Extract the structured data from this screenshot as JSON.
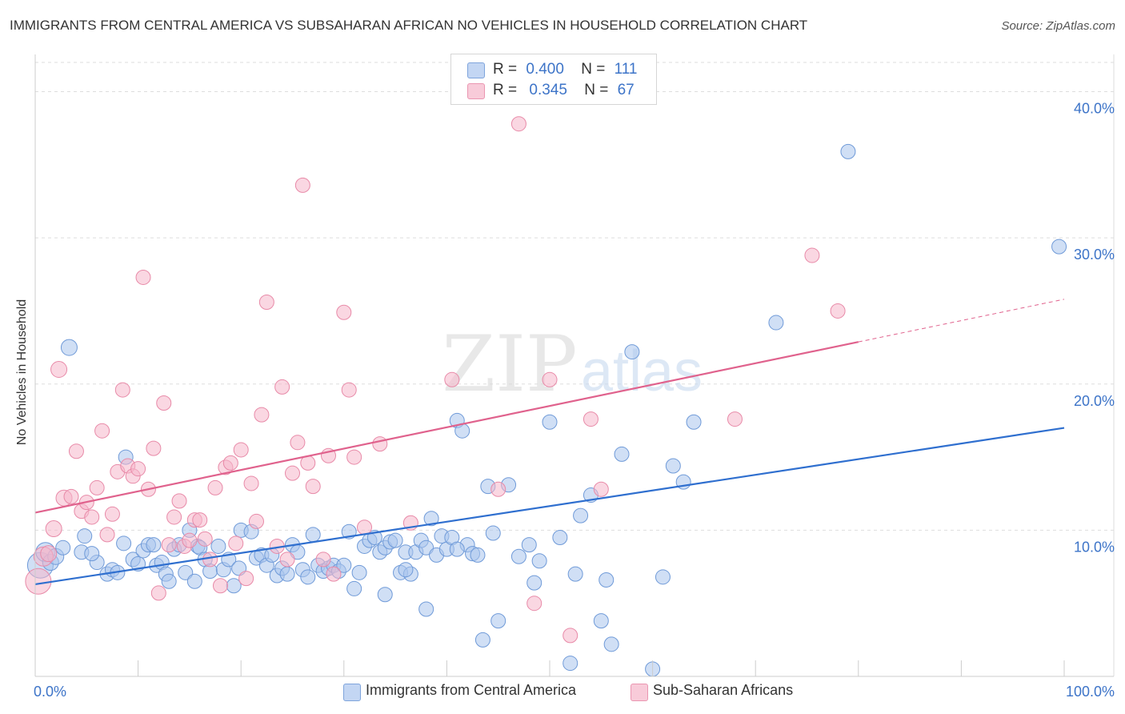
{
  "title": "IMMIGRANTS FROM CENTRAL AMERICA VS SUBSAHARAN AFRICAN NO VEHICLES IN HOUSEHOLD CORRELATION CHART",
  "source": "Source: ZipAtlas.com",
  "watermark": {
    "zip": "ZIP",
    "atlas": "atlas"
  },
  "legend_top": [
    {
      "r_label": "R =",
      "r_value": "0.400",
      "n_label": "N =",
      "n_value": "111"
    },
    {
      "r_label": "R =",
      "r_value": "0.345",
      "n_label": "N =",
      "n_value": "67"
    }
  ],
  "colors": {
    "blue_fill": "#a9c4ec",
    "blue_stroke": "#6f9ad8",
    "blue_line": "#2f6fcf",
    "pink_fill": "#f5b7cb",
    "pink_stroke": "#e88aa8",
    "pink_line": "#e0628d",
    "grid": "#dddddd",
    "tick_label": "#3d74c8"
  },
  "chart_data": {
    "type": "scatter",
    "xlabel": "",
    "ylabel": "No Vehicles in Household",
    "xlim": [
      0,
      100
    ],
    "ylim": [
      0,
      42
    ],
    "x_tick_labels": [
      {
        "value": 0,
        "label": "0.0%"
      },
      {
        "value": 100,
        "label": "100.0%"
      }
    ],
    "y_tick_labels": [
      {
        "value": 10,
        "label": "10.0%"
      },
      {
        "value": 20,
        "label": "20.0%"
      },
      {
        "value": 30,
        "label": "30.0%"
      },
      {
        "value": 40,
        "label": "40.0%"
      }
    ],
    "x_minor_ticks": [
      0,
      10,
      20,
      30,
      40,
      50,
      60,
      70,
      80,
      90,
      100
    ],
    "grid": true,
    "legend_position": "bottom",
    "series": [
      {
        "name": "Immigrants from Central America",
        "color_key": "blue",
        "r": 0.4,
        "n": 111,
        "trend": {
          "x": [
            0,
            100
          ],
          "y": [
            6.3,
            17.0
          ],
          "dashed_from": null
        },
        "points": [
          [
            0.5,
            7.6,
            16
          ],
          [
            1.0,
            8.5,
            12
          ],
          [
            1.5,
            7.8,
            10
          ],
          [
            2.0,
            8.2,
            10
          ],
          [
            3.3,
            22.5,
            10
          ],
          [
            2.7,
            8.8,
            9
          ],
          [
            4.8,
            9.6,
            9
          ],
          [
            4.5,
            8.5,
            9
          ],
          [
            6.0,
            7.8,
            9
          ],
          [
            5.5,
            8.4,
            9
          ],
          [
            7.0,
            7.0,
            9
          ],
          [
            7.5,
            7.3,
            9
          ],
          [
            8.0,
            7.1,
            9
          ],
          [
            8.6,
            9.1,
            9
          ],
          [
            8.8,
            15.0,
            9
          ],
          [
            9.5,
            8.0,
            9
          ],
          [
            10.0,
            7.7,
            9
          ],
          [
            10.5,
            8.6,
            9
          ],
          [
            11.0,
            9.0,
            9
          ],
          [
            11.5,
            9.0,
            9
          ],
          [
            11.8,
            7.6,
            9
          ],
          [
            12.3,
            7.8,
            9
          ],
          [
            12.7,
            7.0,
            9
          ],
          [
            13.0,
            6.5,
            9
          ],
          [
            13.5,
            8.7,
            9
          ],
          [
            14.0,
            9.0,
            9
          ],
          [
            14.6,
            7.1,
            9
          ],
          [
            15.0,
            10.0,
            9
          ],
          [
            15.5,
            6.5,
            9
          ],
          [
            15.8,
            8.9,
            9
          ],
          [
            16.0,
            8.8,
            9
          ],
          [
            16.5,
            8.0,
            9
          ],
          [
            17.0,
            7.2,
            9
          ],
          [
            17.8,
            8.9,
            9
          ],
          [
            18.3,
            7.3,
            9
          ],
          [
            18.8,
            8.0,
            9
          ],
          [
            19.3,
            6.2,
            9
          ],
          [
            19.8,
            7.4,
            9
          ],
          [
            20.0,
            10.0,
            9
          ],
          [
            21.0,
            9.9,
            9
          ],
          [
            21.5,
            8.1,
            9
          ],
          [
            22.0,
            8.3,
            9
          ],
          [
            22.5,
            7.6,
            9
          ],
          [
            23.0,
            8.3,
            9
          ],
          [
            23.5,
            6.9,
            9
          ],
          [
            24.0,
            7.4,
            9
          ],
          [
            24.5,
            7.0,
            9
          ],
          [
            25.0,
            9.0,
            9
          ],
          [
            25.5,
            8.5,
            9
          ],
          [
            26.0,
            7.3,
            9
          ],
          [
            26.5,
            6.8,
            9
          ],
          [
            27.0,
            9.7,
            9
          ],
          [
            27.5,
            7.6,
            9
          ],
          [
            28.0,
            7.2,
            9
          ],
          [
            28.5,
            7.4,
            9
          ],
          [
            29.0,
            7.6,
            9
          ],
          [
            29.5,
            7.2,
            9
          ],
          [
            30.0,
            7.6,
            9
          ],
          [
            30.5,
            9.9,
            9
          ],
          [
            31.0,
            6.0,
            9
          ],
          [
            31.5,
            7.1,
            9
          ],
          [
            32.0,
            8.9,
            9
          ],
          [
            32.5,
            9.3,
            9
          ],
          [
            33.0,
            9.5,
            9
          ],
          [
            33.5,
            8.5,
            9
          ],
          [
            34.0,
            8.8,
            9
          ],
          [
            34.5,
            9.2,
            9
          ],
          [
            35.0,
            9.3,
            9
          ],
          [
            35.5,
            7.1,
            9
          ],
          [
            36.0,
            8.5,
            9
          ],
          [
            36.5,
            7.0,
            9
          ],
          [
            37.0,
            8.5,
            9
          ],
          [
            37.5,
            9.3,
            9
          ],
          [
            38.0,
            8.8,
            9
          ],
          [
            38.5,
            10.8,
            9
          ],
          [
            39.0,
            8.3,
            9
          ],
          [
            39.5,
            9.6,
            9
          ],
          [
            40.0,
            8.7,
            9
          ],
          [
            40.5,
            9.5,
            9
          ],
          [
            41.0,
            17.5,
            9
          ],
          [
            41.5,
            16.8,
            9
          ],
          [
            42.0,
            9.0,
            9
          ],
          [
            42.5,
            8.4,
            9
          ],
          [
            43.0,
            8.3,
            9
          ],
          [
            43.5,
            2.5,
            9
          ],
          [
            44.0,
            13.0,
            9
          ],
          [
            44.5,
            9.8,
            9
          ],
          [
            45.0,
            3.8,
            9
          ],
          [
            46.0,
            13.1,
            9
          ],
          [
            47.0,
            8.2,
            9
          ],
          [
            48.0,
            9.0,
            9
          ],
          [
            48.5,
            6.4,
            9
          ],
          [
            49.0,
            7.9,
            9
          ],
          [
            50.0,
            17.4,
            9
          ],
          [
            51.0,
            9.5,
            9
          ],
          [
            52.0,
            0.9,
            9
          ],
          [
            52.5,
            7.0,
            9
          ],
          [
            53.0,
            11.0,
            9
          ],
          [
            54.0,
            12.4,
            9
          ],
          [
            55.0,
            3.8,
            9
          ],
          [
            55.5,
            6.6,
            9
          ],
          [
            56.0,
            2.2,
            9
          ],
          [
            57.0,
            15.2,
            9
          ],
          [
            58.0,
            22.2,
            9
          ],
          [
            60.0,
            0.5,
            9
          ],
          [
            61.0,
            6.8,
            9
          ],
          [
            62.0,
            14.4,
            9
          ],
          [
            63.0,
            13.3,
            9
          ],
          [
            64.0,
            17.4,
            9
          ],
          [
            72.0,
            24.2,
            9
          ],
          [
            79.0,
            35.9,
            9
          ],
          [
            99.5,
            29.4,
            9
          ],
          [
            38.0,
            4.6,
            9
          ],
          [
            34.0,
            5.6,
            9
          ],
          [
            36.0,
            7.3,
            9
          ],
          [
            41.0,
            8.7,
            9
          ]
        ]
      },
      {
        "name": "Sub-Saharan Africans",
        "color_key": "pink",
        "r": 0.345,
        "n": 67,
        "trend": {
          "x": [
            0,
            100
          ],
          "y": [
            11.2,
            25.8
          ],
          "dashed_from": 80
        },
        "points": [
          [
            0.3,
            6.5,
            16
          ],
          [
            0.8,
            8.2,
            12
          ],
          [
            1.3,
            8.4,
            10
          ],
          [
            1.8,
            10.1,
            10
          ],
          [
            2.3,
            21.0,
            10
          ],
          [
            2.8,
            12.2,
            10
          ],
          [
            3.5,
            12.3,
            9
          ],
          [
            4.0,
            15.4,
            9
          ],
          [
            4.5,
            11.3,
            9
          ],
          [
            5.0,
            11.9,
            9
          ],
          [
            5.5,
            10.9,
            9
          ],
          [
            6.0,
            12.9,
            9
          ],
          [
            6.5,
            16.8,
            9
          ],
          [
            7.0,
            9.7,
            9
          ],
          [
            7.5,
            11.1,
            9
          ],
          [
            8.0,
            14.0,
            9
          ],
          [
            8.5,
            19.6,
            9
          ],
          [
            9.0,
            14.4,
            9
          ],
          [
            9.5,
            13.7,
            9
          ],
          [
            10.0,
            14.2,
            9
          ],
          [
            10.5,
            27.3,
            9
          ],
          [
            11.0,
            12.8,
            9
          ],
          [
            11.5,
            15.6,
            9
          ],
          [
            12.0,
            5.7,
            9
          ],
          [
            12.5,
            18.7,
            9
          ],
          [
            13.0,
            9.0,
            9
          ],
          [
            13.5,
            10.9,
            9
          ],
          [
            14.0,
            12.0,
            9
          ],
          [
            14.5,
            8.9,
            9
          ],
          [
            15.0,
            9.3,
            9
          ],
          [
            15.5,
            10.7,
            9
          ],
          [
            16.0,
            10.7,
            9
          ],
          [
            16.5,
            9.4,
            9
          ],
          [
            17.0,
            8.0,
            9
          ],
          [
            17.5,
            12.9,
            9
          ],
          [
            18.0,
            6.2,
            9
          ],
          [
            18.5,
            14.3,
            9
          ],
          [
            19.0,
            14.6,
            9
          ],
          [
            19.5,
            9.1,
            9
          ],
          [
            20.0,
            15.5,
            9
          ],
          [
            20.5,
            6.7,
            9
          ],
          [
            21.0,
            13.2,
            9
          ],
          [
            21.5,
            10.6,
            9
          ],
          [
            22.0,
            17.9,
            9
          ],
          [
            22.5,
            25.6,
            9
          ],
          [
            23.5,
            8.9,
            9
          ],
          [
            24.0,
            19.8,
            9
          ],
          [
            24.5,
            8.0,
            9
          ],
          [
            25.0,
            13.9,
            9
          ],
          [
            25.5,
            16.0,
            9
          ],
          [
            26.0,
            33.6,
            9
          ],
          [
            26.5,
            14.6,
            9
          ],
          [
            27.0,
            13.0,
            9
          ],
          [
            28.0,
            8.0,
            9
          ],
          [
            28.5,
            15.1,
            9
          ],
          [
            29.0,
            7.0,
            9
          ],
          [
            30.0,
            24.9,
            9
          ],
          [
            30.5,
            19.6,
            9
          ],
          [
            31.0,
            15.0,
            9
          ],
          [
            32.0,
            10.2,
            9
          ],
          [
            33.5,
            15.9,
            9
          ],
          [
            36.5,
            10.5,
            9
          ],
          [
            40.5,
            20.3,
            9
          ],
          [
            45.0,
            12.8,
            9
          ],
          [
            47.0,
            37.8,
            9
          ],
          [
            48.5,
            5.0,
            9
          ],
          [
            50.0,
            20.3,
            9
          ],
          [
            52.0,
            2.8,
            9
          ],
          [
            54.0,
            17.6,
            9
          ],
          [
            55.0,
            12.8,
            9
          ],
          [
            68.0,
            17.6,
            9
          ],
          [
            75.5,
            28.8,
            9
          ],
          [
            78.0,
            25.0,
            9
          ]
        ]
      }
    ]
  }
}
